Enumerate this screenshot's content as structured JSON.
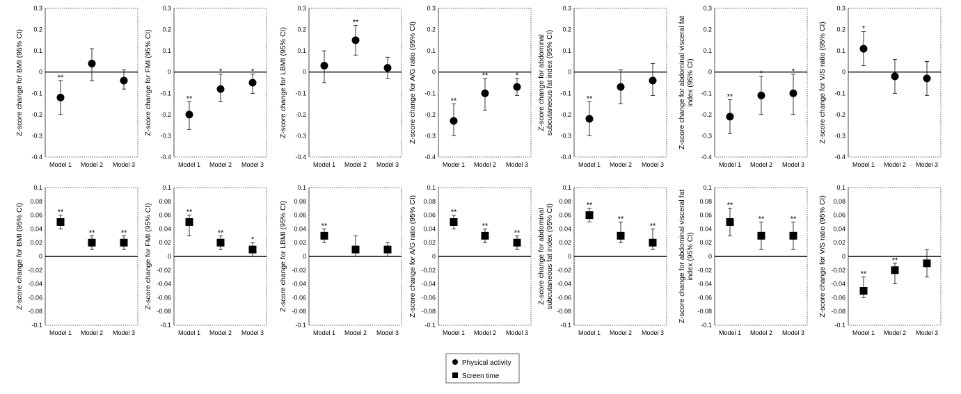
{
  "legend": [
    {
      "marker": "circle",
      "label": "Physical activity"
    },
    {
      "marker": "square",
      "label": "Screen time"
    }
  ],
  "chart_data": [
    {
      "type": "scatter",
      "series": "Physical activity",
      "marker": "circle",
      "ylabel": [
        "Z-score change for BMI (95% CI)"
      ],
      "categories": [
        "Model 1",
        "Model 2",
        "Model 3"
      ],
      "ylim": [
        -0.4,
        0.3
      ],
      "yticks": [
        0.3,
        0.2,
        0.1,
        "0",
        -0.1,
        -0.2,
        -0.3,
        -0.4
      ],
      "yticklabels": [
        "0.3",
        "0.2",
        "0.1",
        "0",
        "-0.1",
        "-0.2",
        "-0.3",
        "-0.4"
      ],
      "points": [
        {
          "y": -0.12,
          "lo": -0.2,
          "hi": -0.04,
          "sig": "**"
        },
        {
          "y": 0.04,
          "lo": -0.04,
          "hi": 0.11,
          "sig": ""
        },
        {
          "y": -0.04,
          "lo": -0.08,
          "hi": 0.01,
          "sig": ""
        }
      ]
    },
    {
      "type": "scatter",
      "series": "Physical activity",
      "marker": "circle",
      "ylabel": [
        "Z-score change for FMI (95% CI)"
      ],
      "categories": [
        "Model 1",
        "Model 2",
        "Model 3"
      ],
      "ylim": [
        -0.4,
        0.3
      ],
      "yticklabels": [
        "0.3",
        "0.2",
        "0.1",
        "0",
        "-0.1",
        "-0.2",
        "-0.3",
        "-0.4"
      ],
      "points": [
        {
          "y": -0.2,
          "lo": -0.27,
          "hi": -0.14,
          "sig": "**"
        },
        {
          "y": -0.08,
          "lo": -0.14,
          "hi": -0.01,
          "sig": "*"
        },
        {
          "y": -0.05,
          "lo": -0.1,
          "hi": -0.01,
          "sig": "*"
        }
      ]
    },
    {
      "type": "scatter",
      "series": "Physical activity",
      "marker": "circle",
      "ylabel": [
        "Z-score change for LBMI (95% CI)"
      ],
      "categories": [
        "Model 1",
        "Model 2",
        "Model 3"
      ],
      "ylim": [
        -0.4,
        0.3
      ],
      "yticklabels": [
        "0.3",
        "0.2",
        "0.1",
        "0",
        "-0.1",
        "-0.2",
        "-0.3",
        "-0.4"
      ],
      "points": [
        {
          "y": 0.03,
          "lo": -0.05,
          "hi": 0.1,
          "sig": ""
        },
        {
          "y": 0.15,
          "lo": 0.08,
          "hi": 0.22,
          "sig": "**"
        },
        {
          "y": 0.02,
          "lo": -0.03,
          "hi": 0.07,
          "sig": ""
        }
      ]
    },
    {
      "type": "scatter",
      "series": "Physical activity",
      "marker": "circle",
      "ylabel": [
        "Z-score change for A/G ratio (95% CI)"
      ],
      "categories": [
        "Model 1",
        "Model 2",
        "Model 3"
      ],
      "ylim": [
        -0.4,
        0.3
      ],
      "yticklabels": [
        "0.3",
        "0.2",
        "0.1",
        "0",
        "-0.1",
        "-0.2",
        "-0.3",
        "-0.4"
      ],
      "points": [
        {
          "y": -0.23,
          "lo": -0.3,
          "hi": -0.15,
          "sig": "**"
        },
        {
          "y": -0.1,
          "lo": -0.18,
          "hi": -0.03,
          "sig": "**"
        },
        {
          "y": -0.07,
          "lo": -0.11,
          "hi": -0.03,
          "sig": "*"
        }
      ]
    },
    {
      "type": "scatter",
      "series": "Physical activity",
      "marker": "circle",
      "ylabel": [
        "Z-score change for abdominal",
        "subcutaneous fat index (95% CI)"
      ],
      "categories": [
        "Model 1",
        "Model 2",
        "Model 3"
      ],
      "ylim": [
        -0.4,
        0.3
      ],
      "yticklabels": [
        "0.3",
        "0.2",
        "0.1",
        "0",
        "-0.1",
        "-0.2",
        "-0.3",
        "-0.4"
      ],
      "points": [
        {
          "y": -0.22,
          "lo": -0.3,
          "hi": -0.14,
          "sig": "**"
        },
        {
          "y": -0.07,
          "lo": -0.15,
          "hi": 0.01,
          "sig": ""
        },
        {
          "y": -0.04,
          "lo": -0.11,
          "hi": 0.04,
          "sig": ""
        }
      ]
    },
    {
      "type": "scatter",
      "series": "Physical activity",
      "marker": "circle",
      "ylabel": [
        "Z-score change for abdominal visceral fat",
        "index (95% CI)"
      ],
      "categories": [
        "Model 1",
        "Model 2",
        "Model 3"
      ],
      "ylim": [
        -0.4,
        0.3
      ],
      "yticklabels": [
        "0.3",
        "0.2",
        "0.1",
        "0",
        "-0.1",
        "-0.2",
        "-0.3",
        "-0.4"
      ],
      "points": [
        {
          "y": -0.21,
          "lo": -0.29,
          "hi": -0.13,
          "sig": "**"
        },
        {
          "y": -0.11,
          "lo": -0.2,
          "hi": -0.02,
          "sig": "*"
        },
        {
          "y": -0.1,
          "lo": -0.2,
          "hi": -0.01,
          "sig": "*"
        }
      ]
    },
    {
      "type": "scatter",
      "series": "Physical activity",
      "marker": "circle",
      "ylabel": [
        "Z-score change for V/S ratio (95% CI)"
      ],
      "categories": [
        "Model 1",
        "Model 2",
        "Model 3"
      ],
      "ylim": [
        -0.4,
        0.3
      ],
      "yticklabels": [
        "0.3",
        "0.2",
        "0.1",
        "0",
        "-0.1",
        "-0.2",
        "-0.3",
        "-0.4"
      ],
      "points": [
        {
          "y": 0.11,
          "lo": 0.03,
          "hi": 0.19,
          "sig": "*"
        },
        {
          "y": -0.02,
          "lo": -0.1,
          "hi": 0.06,
          "sig": ""
        },
        {
          "y": -0.03,
          "lo": -0.11,
          "hi": 0.05,
          "sig": ""
        }
      ]
    },
    {
      "type": "scatter",
      "series": "Screen time",
      "marker": "square",
      "ylabel": [
        "Z-score change for BMI (95% CI)"
      ],
      "categories": [
        "Model 1",
        "Model 2",
        "Model 3"
      ],
      "ylim": [
        -0.1,
        0.1
      ],
      "yticklabels": [
        "0.1",
        "0.08",
        "0.06",
        "0.04",
        "0.02",
        "0",
        "-0.02",
        "-0.04",
        "-0.06",
        "-0.08",
        "-0.1"
      ],
      "points": [
        {
          "y": 0.05,
          "lo": 0.04,
          "hi": 0.06,
          "sig": "**"
        },
        {
          "y": 0.02,
          "lo": 0.01,
          "hi": 0.03,
          "sig": "**"
        },
        {
          "y": 0.02,
          "lo": 0.01,
          "hi": 0.03,
          "sig": "**"
        }
      ]
    },
    {
      "type": "scatter",
      "series": "Screen time",
      "marker": "square",
      "ylabel": [
        "Z-score change for FMI (95% CI)"
      ],
      "categories": [
        "Model 1",
        "Model 2",
        "Model 3"
      ],
      "ylim": [
        -0.1,
        0.1
      ],
      "yticklabels": [
        "0.1",
        "0.08",
        "0.06",
        "0.04",
        "0.02",
        "0",
        "-0.02",
        "-0.04",
        "-0.06",
        "-0.08",
        "-0.1"
      ],
      "points": [
        {
          "y": 0.05,
          "lo": 0.03,
          "hi": 0.06,
          "sig": "**"
        },
        {
          "y": 0.02,
          "lo": 0.01,
          "hi": 0.03,
          "sig": "**"
        },
        {
          "y": 0.01,
          "lo": 0.0,
          "hi": 0.02,
          "sig": "*"
        }
      ]
    },
    {
      "type": "scatter",
      "series": "Screen time",
      "marker": "square",
      "ylabel": [
        "Z-score change for LBMI (95% CI)"
      ],
      "categories": [
        "Model 1",
        "Model 2",
        "Model 3"
      ],
      "ylim": [
        -0.1,
        0.1
      ],
      "yticklabels": [
        "0.1",
        "0.08",
        "0.06",
        "0.04",
        "0.02",
        "0",
        "-0.02",
        "-0.04",
        "-0.06",
        "-0.08",
        "-0.1"
      ],
      "points": [
        {
          "y": 0.03,
          "lo": 0.02,
          "hi": 0.04,
          "sig": "**"
        },
        {
          "y": 0.01,
          "lo": 0.0,
          "hi": 0.03,
          "sig": ""
        },
        {
          "y": 0.01,
          "lo": 0.0,
          "hi": 0.02,
          "sig": ""
        }
      ]
    },
    {
      "type": "scatter",
      "series": "Screen time",
      "marker": "square",
      "ylabel": [
        "Z-score change for A/G ratio (95% CI)"
      ],
      "categories": [
        "Model 1",
        "Model 2",
        "Model 3"
      ],
      "ylim": [
        -0.1,
        0.1
      ],
      "yticklabels": [
        "0.1",
        "0.08",
        "0.06",
        "0.04",
        "0.02",
        "0",
        "-0.02",
        "-0.04",
        "-0.06",
        "-0.08",
        "-0.1"
      ],
      "points": [
        {
          "y": 0.05,
          "lo": 0.04,
          "hi": 0.06,
          "sig": "**"
        },
        {
          "y": 0.03,
          "lo": 0.02,
          "hi": 0.04,
          "sig": "**"
        },
        {
          "y": 0.02,
          "lo": 0.01,
          "hi": 0.03,
          "sig": "**"
        }
      ]
    },
    {
      "type": "scatter",
      "series": "Screen time",
      "marker": "square",
      "ylabel": [
        "Z-score change for abdominal",
        "subcutaneous fat index (95% CI)"
      ],
      "categories": [
        "Model 1",
        "Model 2",
        "Model 3"
      ],
      "ylim": [
        -0.1,
        0.1
      ],
      "yticklabels": [
        "0.1",
        "0.08",
        "0.06",
        "0.04",
        "0.02",
        "0",
        "-0.02",
        "-0.04",
        "-0.06",
        "-0.08",
        "-0.1"
      ],
      "points": [
        {
          "y": 0.06,
          "lo": 0.05,
          "hi": 0.07,
          "sig": "**"
        },
        {
          "y": 0.03,
          "lo": 0.02,
          "hi": 0.05,
          "sig": "**"
        },
        {
          "y": 0.02,
          "lo": 0.01,
          "hi": 0.04,
          "sig": "**"
        }
      ]
    },
    {
      "type": "scatter",
      "series": "Screen time",
      "marker": "square",
      "ylabel": [
        "Z-score change for abdominal visceral fat",
        "index (95% CI)"
      ],
      "categories": [
        "Model 1",
        "Model 2",
        "Model 3"
      ],
      "ylim": [
        -0.1,
        0.1
      ],
      "yticklabels": [
        "0.1",
        "0.08",
        "0.06",
        "0.04",
        "0.02",
        "0",
        "-0.02",
        "-0.04",
        "-0.06",
        "-0.08",
        "-0.1"
      ],
      "points": [
        {
          "y": 0.05,
          "lo": 0.03,
          "hi": 0.07,
          "sig": "**"
        },
        {
          "y": 0.03,
          "lo": 0.01,
          "hi": 0.05,
          "sig": "**"
        },
        {
          "y": 0.03,
          "lo": 0.01,
          "hi": 0.05,
          "sig": "**"
        }
      ]
    },
    {
      "type": "scatter",
      "series": "Screen time",
      "marker": "square",
      "ylabel": [
        "Z-score change for V/S ratio (95% CI)"
      ],
      "categories": [
        "Model 1",
        "Model 2",
        "Model 3"
      ],
      "ylim": [
        -0.1,
        0.1
      ],
      "yticklabels": [
        "0.1",
        "0.08",
        "0.06",
        "0.04",
        "0.02",
        "0",
        "-0.02",
        "-0.04",
        "-0.06",
        "-0.08",
        "-0.1"
      ],
      "points": [
        {
          "y": -0.05,
          "lo": -0.06,
          "hi": -0.03,
          "sig": "**"
        },
        {
          "y": -0.02,
          "lo": -0.04,
          "hi": -0.01,
          "sig": "**"
        },
        {
          "y": -0.01,
          "lo": -0.03,
          "hi": 0.01,
          "sig": ""
        }
      ]
    }
  ]
}
